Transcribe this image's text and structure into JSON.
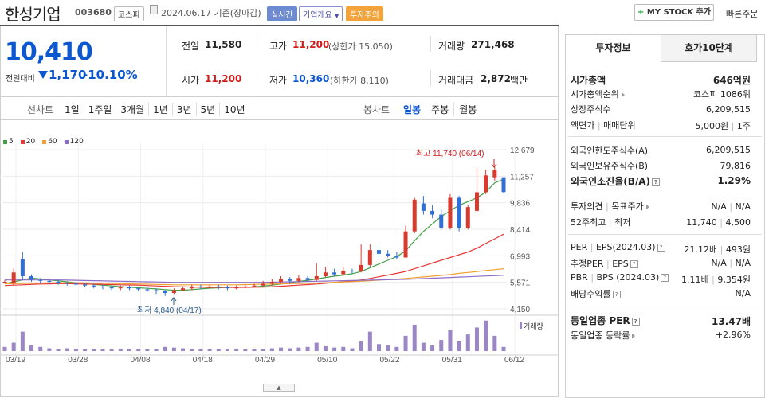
{
  "header": {
    "company_name": "한성기업",
    "code": "003680",
    "market_tag": "코스피",
    "date_text": "2024.06.17 기준(장마감)",
    "realtime_tag": "실시간",
    "overview_tag": "기업개요",
    "caution_tag": "투자주의",
    "mystock_label": "MY STOCK 추가",
    "quick_order_label": "빠른주문"
  },
  "price": {
    "current": "10,410",
    "change_label": "전일대비",
    "change": "1,170",
    "change_pct": "-10.10%"
  },
  "summary": {
    "prev_close_label": "전일",
    "prev_close": "11,580",
    "high_label": "고가",
    "high": "11,200",
    "upper_limit": "(상한가 15,050)",
    "volume_label": "거래량",
    "volume": "271,468",
    "open_label": "시가",
    "open": "11,200",
    "low_label": "저가",
    "low": "10,360",
    "lower_limit": "(하한가 8,110)",
    "amount_label": "거래대금",
    "amount": "2,872",
    "amount_unit": "백만"
  },
  "chart_toolbar": {
    "line_chart": "선차트",
    "periods": [
      "1일",
      "1주일",
      "3개월",
      "1년",
      "3년",
      "5년",
      "10년"
    ],
    "candle_chart": "봉차트",
    "candle_periods": [
      "일봉",
      "주봉",
      "월봉"
    ],
    "active_candle": "일봉"
  },
  "legend": [
    {
      "label": "5",
      "color": "#43a047"
    },
    {
      "label": "20",
      "color": "#e53935"
    },
    {
      "label": "60",
      "color": "#f0a030"
    },
    {
      "label": "120",
      "color": "#8e6cc7"
    }
  ],
  "chart_data": {
    "type": "candlestick",
    "y_ticks": [
      "12,679",
      "11,257",
      "9,836",
      "8,414",
      "6,993",
      "5,571",
      "4,150"
    ],
    "ylim": [
      4150,
      12679
    ],
    "x_labels": [
      "03/19",
      "03/28",
      "04/08",
      "04/18",
      "04/29",
      "05/10",
      "05/22",
      "05/31",
      "06/12"
    ],
    "high_annotation": "최고 11,740 (06/14)",
    "low_annotation": "최저 4,840 (04/17)",
    "volume_label": "거래량",
    "candles": [
      {
        "o": 5600,
        "c": 5600,
        "h": 5700,
        "l": 5500
      },
      {
        "o": 5500,
        "c": 6100,
        "h": 6300,
        "l": 5400
      },
      {
        "o": 6800,
        "c": 5900,
        "h": 7200,
        "l": 5700
      },
      {
        "o": 5900,
        "c": 5700,
        "h": 6000,
        "l": 5600
      },
      {
        "o": 5700,
        "c": 5650,
        "h": 5800,
        "l": 5500
      },
      {
        "o": 5650,
        "c": 5600,
        "h": 5700,
        "l": 5500
      },
      {
        "o": 5600,
        "c": 5550,
        "h": 5700,
        "l": 5450
      },
      {
        "o": 5550,
        "c": 5500,
        "h": 5600,
        "l": 5400
      },
      {
        "o": 5500,
        "c": 5450,
        "h": 5600,
        "l": 5350
      },
      {
        "o": 5450,
        "c": 5400,
        "h": 5550,
        "l": 5300
      },
      {
        "o": 5400,
        "c": 5350,
        "h": 5500,
        "l": 5250
      },
      {
        "o": 5350,
        "c": 5300,
        "h": 5450,
        "l": 5200
      },
      {
        "o": 5300,
        "c": 5250,
        "h": 5400,
        "l": 5150
      },
      {
        "o": 5250,
        "c": 5300,
        "h": 5400,
        "l": 5150
      },
      {
        "o": 5300,
        "c": 5250,
        "h": 5400,
        "l": 5150
      },
      {
        "o": 5250,
        "c": 5200,
        "h": 5350,
        "l": 5100
      },
      {
        "o": 5200,
        "c": 5150,
        "h": 5300,
        "l": 5050
      },
      {
        "o": 5150,
        "c": 5100,
        "h": 5250,
        "l": 4950
      },
      {
        "o": 5100,
        "c": 5000,
        "h": 5150,
        "l": 4840
      },
      {
        "o": 5000,
        "c": 5150,
        "h": 5250,
        "l": 4950
      },
      {
        "o": 5150,
        "c": 5250,
        "h": 5350,
        "l": 5100
      },
      {
        "o": 5250,
        "c": 5350,
        "h": 5450,
        "l": 5150
      },
      {
        "o": 5350,
        "c": 5300,
        "h": 5450,
        "l": 5200
      },
      {
        "o": 5300,
        "c": 5350,
        "h": 5450,
        "l": 5250
      },
      {
        "o": 5350,
        "c": 5300,
        "h": 5450,
        "l": 5200
      },
      {
        "o": 5300,
        "c": 5250,
        "h": 5400,
        "l": 5150
      },
      {
        "o": 5250,
        "c": 5300,
        "h": 5400,
        "l": 5200
      },
      {
        "o": 5300,
        "c": 5350,
        "h": 5450,
        "l": 5250
      },
      {
        "o": 5350,
        "c": 5400,
        "h": 5500,
        "l": 5300
      },
      {
        "o": 5400,
        "c": 5500,
        "h": 5650,
        "l": 5350
      },
      {
        "o": 5500,
        "c": 5600,
        "h": 5750,
        "l": 5400
      },
      {
        "o": 5600,
        "c": 5750,
        "h": 5900,
        "l": 5500
      },
      {
        "o": 5750,
        "c": 5650,
        "h": 5850,
        "l": 5500
      },
      {
        "o": 5650,
        "c": 5800,
        "h": 5950,
        "l": 5550
      },
      {
        "o": 5800,
        "c": 5700,
        "h": 5900,
        "l": 5600
      },
      {
        "o": 5700,
        "c": 5900,
        "h": 6600,
        "l": 5650
      },
      {
        "o": 5900,
        "c": 6100,
        "h": 6400,
        "l": 5850
      },
      {
        "o": 6100,
        "c": 6000,
        "h": 6300,
        "l": 5900
      },
      {
        "o": 6000,
        "c": 6200,
        "h": 6400,
        "l": 5950
      },
      {
        "o": 6200,
        "c": 6150,
        "h": 6300,
        "l": 6050
      },
      {
        "o": 6150,
        "c": 6500,
        "h": 7600,
        "l": 6100
      },
      {
        "o": 6500,
        "c": 7300,
        "h": 7600,
        "l": 6400
      },
      {
        "o": 7300,
        "c": 7100,
        "h": 7500,
        "l": 6900
      },
      {
        "o": 7100,
        "c": 7000,
        "h": 7300,
        "l": 6900
      },
      {
        "o": 7000,
        "c": 6900,
        "h": 7200,
        "l": 6800
      },
      {
        "o": 6900,
        "c": 8300,
        "h": 8600,
        "l": 6900
      },
      {
        "o": 8300,
        "c": 10000,
        "h": 10100,
        "l": 8200
      },
      {
        "o": 9800,
        "c": 9400,
        "h": 10200,
        "l": 9200
      },
      {
        "o": 9400,
        "c": 9200,
        "h": 9700,
        "l": 9000
      },
      {
        "o": 9200,
        "c": 8500,
        "h": 9500,
        "l": 8400
      },
      {
        "o": 8500,
        "c": 10100,
        "h": 10300,
        "l": 8400
      },
      {
        "o": 10100,
        "c": 8500,
        "h": 10200,
        "l": 8300
      },
      {
        "o": 8500,
        "c": 9600,
        "h": 9700,
        "l": 8400
      },
      {
        "o": 9400,
        "c": 10400,
        "h": 11740,
        "l": 9300
      },
      {
        "o": 10400,
        "c": 11300,
        "h": 11600,
        "l": 10300
      },
      {
        "o": 11200,
        "c": 11580,
        "h": 11740,
        "l": 11000
      },
      {
        "o": 11200,
        "c": 10410,
        "h": 11200,
        "l": 10360
      }
    ],
    "ma5": [
      5500,
      5600,
      5700,
      5800,
      5750,
      5700,
      5650,
      5600,
      5550,
      5500,
      5460,
      5420,
      5380,
      5340,
      5310,
      5280,
      5250,
      5220,
      5180,
      5150,
      5150,
      5180,
      5220,
      5260,
      5280,
      5300,
      5300,
      5310,
      5330,
      5370,
      5420,
      5480,
      5550,
      5620,
      5680,
      5750,
      5830,
      5900,
      5960,
      6030,
      6150,
      6350,
      6550,
      6750,
      6950,
      7250,
      7800,
      8300,
      8700,
      9100,
      9400,
      9700,
      9900,
      10100,
      10400,
      10900,
      11100
    ],
    "ma20": [
      5400,
      5420,
      5440,
      5460,
      5480,
      5490,
      5500,
      5500,
      5490,
      5480,
      5470,
      5460,
      5450,
      5440,
      5430,
      5420,
      5400,
      5380,
      5360,
      5340,
      5330,
      5320,
      5310,
      5300,
      5300,
      5300,
      5300,
      5300,
      5310,
      5320,
      5340,
      5360,
      5390,
      5420,
      5450,
      5480,
      5520,
      5560,
      5600,
      5640,
      5700,
      5780,
      5870,
      5960,
      6050,
      6150,
      6300,
      6450,
      6600,
      6750,
      6900,
      7050,
      7200,
      7400,
      7650,
      7900,
      8150
    ],
    "ma60": [
      5500,
      5500,
      5510,
      5520,
      5530,
      5540,
      5550,
      5550,
      5550,
      5540,
      5530,
      5520,
      5510,
      5500,
      5490,
      5480,
      5470,
      5460,
      5450,
      5440,
      5440,
      5440,
      5440,
      5440,
      5440,
      5440,
      5440,
      5450,
      5460,
      5470,
      5480,
      5490,
      5500,
      5510,
      5520,
      5530,
      5550,
      5570,
      5590,
      5610,
      5630,
      5660,
      5690,
      5720,
      5750,
      5780,
      5820,
      5860,
      5900,
      5940,
      5990,
      6050,
      6100,
      6150,
      6200,
      6250,
      6300
    ],
    "ma120": [
      5700,
      5700,
      5700,
      5700,
      5700,
      5700,
      5700,
      5690,
      5680,
      5670,
      5660,
      5650,
      5640,
      5630,
      5620,
      5610,
      5600,
      5590,
      5580,
      5570,
      5570,
      5570,
      5570,
      5570,
      5570,
      5570,
      5570,
      5570,
      5570,
      5570,
      5580,
      5590,
      5600,
      5610,
      5620,
      5630,
      5640,
      5650,
      5660,
      5670,
      5680,
      5690,
      5700,
      5710,
      5720,
      5730,
      5750,
      5770,
      5790,
      5810,
      5830,
      5850,
      5870,
      5890,
      5910,
      5930,
      5950
    ],
    "volume": [
      30,
      60,
      140,
      40,
      30,
      20,
      15,
      20,
      15,
      15,
      15,
      12,
      12,
      15,
      12,
      12,
      12,
      15,
      30,
      25,
      20,
      15,
      12,
      15,
      12,
      12,
      15,
      12,
      12,
      15,
      20,
      25,
      20,
      25,
      30,
      60,
      35,
      25,
      30,
      20,
      70,
      140,
      50,
      40,
      30,
      110,
      190,
      60,
      40,
      80,
      150,
      70,
      120,
      170,
      220,
      110,
      30
    ]
  },
  "right_panel": {
    "tab_active": "투자정보",
    "tab_inactive": "호가10단계",
    "market_cap_label": "시가총액",
    "market_cap": "646억원",
    "rank_label": "시가총액순위",
    "rank": "코스피 1086위",
    "shares_label": "상장주식수",
    "shares": "6,209,515",
    "par_label": "액면가",
    "unit_label": "매매단위",
    "par": "5,000원",
    "unit": "1주",
    "foreign_limit_label": "외국인한도주식수(A)",
    "foreign_limit": "6,209,515",
    "foreign_hold_label": "외국인보유주식수(B)",
    "foreign_hold": "79,816",
    "foreign_ratio_label": "외국인소진율(B/A)",
    "foreign_ratio": "1.29%",
    "opinion_label": "투자의견",
    "target_label": "목표주가",
    "opinion": "N/A",
    "target": "N/A",
    "w52_label": "52주최고",
    "w52_low_label": "최저",
    "w52_high": "11,740",
    "w52_low": "4,500",
    "per_label": "PER",
    "eps_label": "EPS(2024.03)",
    "per": "21.12배",
    "eps": "493원",
    "est_per_label": "추정PER",
    "est_eps_label": "EPS",
    "est_per": "N/A",
    "est_eps": "N/A",
    "pbr_label": "PBR",
    "bps_label": "BPS (2024.03)",
    "pbr": "1.11배",
    "bps": "9,354원",
    "div_label": "배당수익률",
    "div": "N/A",
    "sector_per_label": "동일업종 PER",
    "sector_per": "13.47배",
    "sector_chg_label": "동일업종 등락률",
    "sector_chg": "+2.96%"
  }
}
